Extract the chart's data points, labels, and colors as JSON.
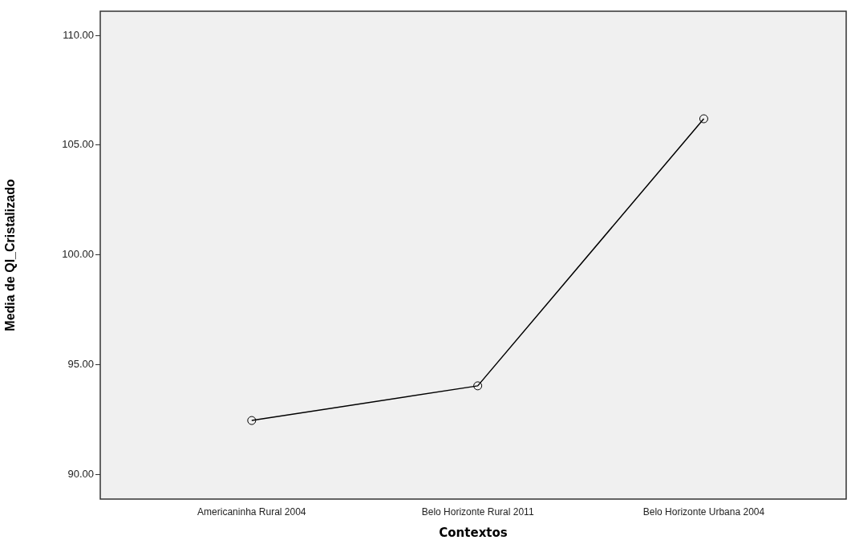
{
  "chart_data": {
    "type": "line",
    "xlabel": "Contextos",
    "ylabel": "Media de QI_Cristalizado",
    "categories": [
      "Americaninha Rural 2004",
      "Belo Horizonte Rural 2011",
      "Belo Horizonte Urbana 2004"
    ],
    "series": [
      {
        "color": "#000000",
        "values": [
          92.45,
          94.03,
          106.2
        ]
      }
    ],
    "ylim": [
      88.87,
      111.1
    ],
    "yticks": [
      {
        "value": 90,
        "label": "90.00"
      },
      {
        "value": 95,
        "label": "95.00"
      },
      {
        "value": 100,
        "label": "100.00"
      },
      {
        "value": 105,
        "label": "105.00"
      },
      {
        "value": 110,
        "label": "110.00"
      }
    ],
    "grid": false,
    "legend": false,
    "marker": "circle",
    "line_style": "solid"
  }
}
